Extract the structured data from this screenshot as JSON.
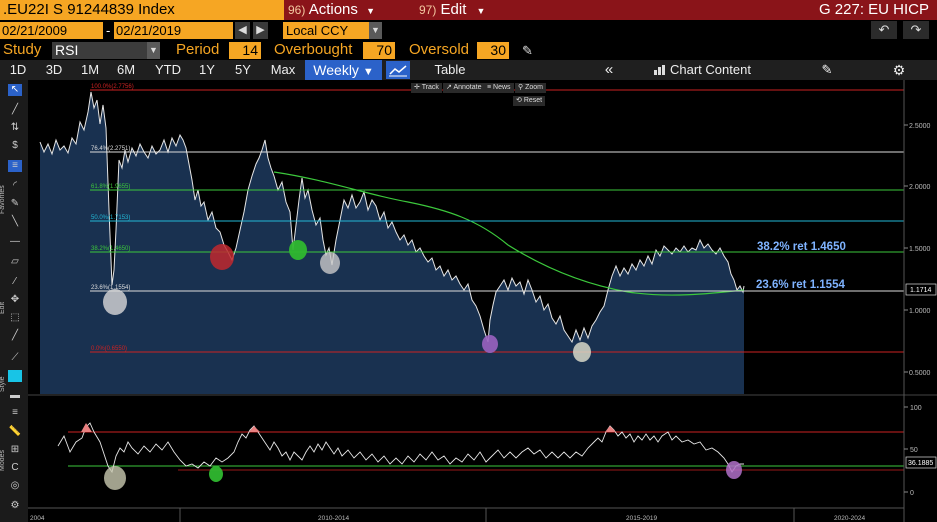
{
  "header": {
    "ticker": ".EU22I S 91244839 Index",
    "actions_num": "96)",
    "actions_label": "Actions",
    "edit_num": "97)",
    "edit_label": "Edit",
    "title": "G 227: EU HICP"
  },
  "range": {
    "start": "02/21/2009",
    "sep": "-",
    "end": "02/21/2019",
    "currency": "Local CCY"
  },
  "study": {
    "study_label": "Study",
    "study_value": "RSI",
    "period_label": "Period",
    "period_value": "14",
    "overbought_label": "Overbought",
    "overbought_value": "70",
    "oversold_label": "Oversold",
    "oversold_value": "30"
  },
  "toolbar": {
    "periods": [
      "1D",
      "3D",
      "1M",
      "6M",
      "YTD",
      "1Y",
      "5Y",
      "Max"
    ],
    "frequency": "Weekly",
    "table": "Table",
    "chart_content": "Chart Content"
  },
  "chart_tools": {
    "track": "Track",
    "annotate": "Annotate",
    "news": "News",
    "zoom": "Zoom",
    "reset": "Reset"
  },
  "side_labels": {
    "favorites": "Favorites",
    "edit": "Edit",
    "style": "Style",
    "modes": "Modes"
  },
  "colors": {
    "orange": "#f6a623",
    "red_bar": "#8a1419",
    "blue": "#2b62c9",
    "fill": "#1a3454",
    "ma": "#3cc83c"
  },
  "chart_data": {
    "type": "line",
    "price_axis": {
      "ticks": [
        "2.5000",
        "2.0000",
        "1.5000",
        "1.0000",
        "0.5000"
      ],
      "ylim": [
        0.3,
        2.8
      ]
    },
    "last_value": "1.1714",
    "fib_levels": [
      {
        "label": "100.0%(2.7756)",
        "value": 2.7756,
        "color": "#c22"
      },
      {
        "label": "76.4%(2.2751)",
        "value": 2.2751,
        "color": "#ddd"
      },
      {
        "label": "61.8%(1.9655)",
        "value": 1.9655,
        "color": "#3cc83c"
      },
      {
        "label": "50.0%(1.7153)",
        "value": 1.7153,
        "color": "#22b8d6"
      },
      {
        "label": "38.2%(1.4650)",
        "value": 1.465,
        "color": "#3cc83c"
      },
      {
        "label": "23.6%(1.1554)",
        "value": 1.1554,
        "color": "#ddd"
      },
      {
        "label": "0.0%(0.6550)",
        "value": 0.655,
        "color": "#c22"
      }
    ],
    "annotations": [
      "38.2% ret 1.4650",
      "23.6% ret 1.1554"
    ],
    "rsi_axis": {
      "ticks": [
        "100",
        "50",
        "0"
      ],
      "ylim": [
        -5,
        108
      ]
    },
    "rsi_last": "36.1885",
    "rsi_levels": [
      70,
      30
    ],
    "x_labels": [
      "2004",
      "2010-2014",
      "2015-2019",
      "2020-2024"
    ]
  }
}
